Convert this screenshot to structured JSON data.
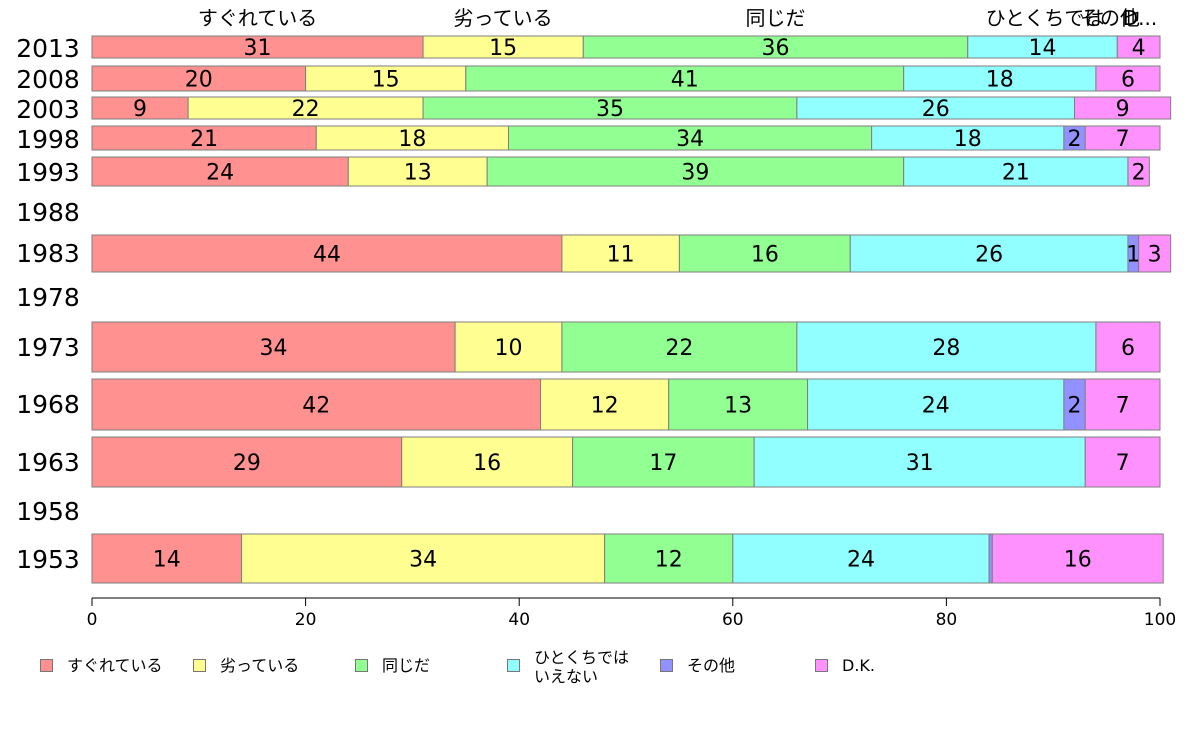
{
  "chart_data": {
    "type": "bar",
    "orientation": "horizontal",
    "stacked": true,
    "title": "",
    "xlabel": "",
    "ylabel": "",
    "xlim": [
      0,
      100
    ],
    "x_ticks": [
      0,
      20,
      40,
      60,
      80,
      100
    ],
    "categories": [
      "2013",
      "2008",
      "2003",
      "1998",
      "1993",
      "1988",
      "1983",
      "1978",
      "1973",
      "1968",
      "1963",
      "1958",
      "1953"
    ],
    "top_labels": [
      "すぐれている",
      "劣っている",
      "同じだ",
      "ひとくちでは",
      "その他",
      "D..."
    ],
    "series": [
      {
        "name": "すぐれている",
        "color": "#ff9191",
        "values": [
          31,
          20,
          9,
          21,
          24,
          null,
          44,
          null,
          34,
          42,
          29,
          null,
          14
        ]
      },
      {
        "name": "劣っている",
        "color": "#ffff91",
        "values": [
          15,
          15,
          22,
          18,
          13,
          null,
          11,
          null,
          10,
          12,
          16,
          null,
          34
        ]
      },
      {
        "name": "同じだ",
        "color": "#91ff91",
        "values": [
          36,
          41,
          35,
          34,
          39,
          null,
          16,
          null,
          22,
          13,
          17,
          null,
          12
        ]
      },
      {
        "name": "ひとくちでは\nいえない",
        "color": "#91ffff",
        "values": [
          14,
          18,
          26,
          18,
          21,
          null,
          26,
          null,
          28,
          24,
          31,
          null,
          24
        ]
      },
      {
        "name": "その他",
        "color": "#9191ff",
        "values": [
          0,
          0,
          0,
          2,
          0,
          null,
          1,
          null,
          0,
          2,
          0,
          null,
          0.3
        ]
      },
      {
        "name": "D.K.",
        "color": "#ff91ff",
        "values": [
          4,
          6,
          9,
          7,
          2,
          null,
          3,
          null,
          6,
          7,
          7,
          null,
          16
        ]
      }
    ],
    "legend_position": "bottom"
  }
}
